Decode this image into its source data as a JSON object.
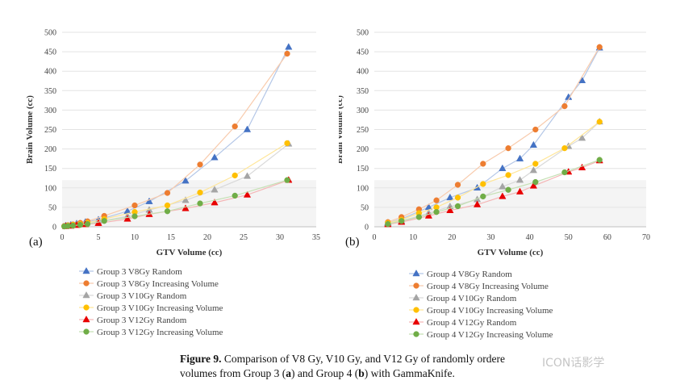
{
  "caption": {
    "figure_label": "Figure 9.",
    "text_part1": " Comparison of V8 Gy, V10 Gy, and V12 Gy of randomly ordere",
    "text_part2": "volumes from Group 3 (",
    "letter_a": "a",
    "text_part3": ") and Group 4 (",
    "letter_b": "b",
    "text_part4": ") with GammaKnife."
  },
  "watermark": "ICON话影学",
  "chart_data": [
    {
      "type": "line",
      "panel_label": "(a)",
      "xlabel": "GTV Volume (cc)",
      "ylabel": "Brain Volume (cc)",
      "xlim": [
        0,
        35
      ],
      "ylim": [
        0,
        500
      ],
      "xticks": [
        0,
        5,
        10,
        15,
        20,
        25,
        30,
        35
      ],
      "yticks": [
        0,
        50,
        100,
        150,
        200,
        250,
        300,
        350,
        400,
        450,
        500
      ],
      "series": [
        {
          "name": "Group 3 V8Gy Random",
          "color": "#4472c4",
          "line_color": "#b4c7e7",
          "marker": "triangle",
          "x": [
            0.5,
            1.2,
            2,
            3.2,
            5,
            9,
            12,
            17,
            21,
            25.5,
            31.2
          ],
          "y": [
            3,
            5,
            8,
            12,
            18,
            40,
            65,
            118,
            178,
            250,
            462
          ]
        },
        {
          "name": "Group 3 V8Gy Increasing Volume",
          "color": "#ed7d31",
          "line_color": "#f8cbad",
          "marker": "circle",
          "x": [
            0.3,
            0.8,
            1.5,
            2.5,
            3.5,
            5.8,
            10,
            14.5,
            19,
            23.8,
            31
          ],
          "y": [
            2,
            4,
            6,
            10,
            14,
            28,
            55,
            87,
            160,
            258,
            445
          ]
        },
        {
          "name": "Group 3 V10Gy Random",
          "color": "#a5a5a5",
          "line_color": "#d9d9d9",
          "marker": "triangle",
          "x": [
            0.5,
            1.2,
            2,
            3.2,
            5,
            9,
            12,
            17,
            21,
            25.5,
            31.2
          ],
          "y": [
            2,
            4,
            6,
            9,
            13,
            27,
            43,
            68,
            95,
            130,
            213
          ]
        },
        {
          "name": "Group 3 V10Gy Increasing Volume",
          "color": "#ffc000",
          "line_color": "#ffe699",
          "marker": "circle",
          "x": [
            0.3,
            0.8,
            1.5,
            2.5,
            3.5,
            5.8,
            10,
            14.5,
            19,
            23.8,
            31
          ],
          "y": [
            1,
            3,
            5,
            7,
            10,
            20,
            38,
            55,
            88,
            132,
            215
          ]
        },
        {
          "name": "Group 3 V12Gy Random",
          "color": "#e80000",
          "line_color": "#f4b6b6",
          "marker": "triangle",
          "x": [
            0.5,
            1.2,
            2,
            3.2,
            5,
            9,
            12,
            17,
            21,
            25.5,
            31.2
          ],
          "y": [
            1,
            2,
            4,
            6,
            9,
            20,
            32,
            47,
            62,
            82,
            120
          ]
        },
        {
          "name": "Group 3 V12Gy Increasing Volume",
          "color": "#70ad47",
          "line_color": "#c5e0b4",
          "marker": "circle",
          "x": [
            0.3,
            0.8,
            1.5,
            2.5,
            3.5,
            5.8,
            10,
            14.5,
            19,
            23.8,
            31
          ],
          "y": [
            1,
            2,
            3,
            5,
            7,
            15,
            27,
            40,
            60,
            80,
            120
          ]
        }
      ]
    },
    {
      "type": "line",
      "panel_label": "(b)",
      "xlabel": "GTV Volume (cc)",
      "ylabel": "Brain Volume (cc)",
      "xlim": [
        0,
        70
      ],
      "ylim": [
        0,
        500
      ],
      "xticks": [
        0,
        10,
        20,
        30,
        40,
        50,
        60,
        70
      ],
      "yticks": [
        0,
        50,
        100,
        150,
        200,
        250,
        300,
        350,
        400,
        450,
        500
      ],
      "series": [
        {
          "name": "Group 4 V8Gy Random",
          "color": "#4472c4",
          "line_color": "#b4c7e7",
          "marker": "triangle",
          "x": [
            3.5,
            7,
            14,
            19.5,
            26.5,
            33,
            37.5,
            41,
            50,
            53.5,
            58
          ],
          "y": [
            10,
            20,
            50,
            75,
            100,
            150,
            175,
            210,
            333,
            376,
            460
          ]
        },
        {
          "name": "Group 4 V8Gy Increasing Volume",
          "color": "#ed7d31",
          "line_color": "#f8cbad",
          "marker": "circle",
          "x": [
            3.5,
            7,
            11.5,
            16,
            21.5,
            28,
            34.5,
            41.5,
            49,
            58
          ],
          "y": [
            12,
            25,
            45,
            68,
            108,
            162,
            202,
            250,
            310,
            462
          ]
        },
        {
          "name": "Group 4 V10Gy Random",
          "color": "#a5a5a5",
          "line_color": "#d9d9d9",
          "marker": "triangle",
          "x": [
            3.5,
            7,
            14,
            19.5,
            26.5,
            33,
            37.5,
            41,
            50,
            53.5,
            58
          ],
          "y": [
            8,
            15,
            35,
            52,
            70,
            103,
            120,
            145,
            207,
            228,
            270
          ]
        },
        {
          "name": "Group 4 V10Gy Increasing Volume",
          "color": "#ffc000",
          "line_color": "#ffe699",
          "marker": "circle",
          "x": [
            3.5,
            7,
            11.5,
            16,
            21.5,
            28,
            34.5,
            41.5,
            49,
            58
          ],
          "y": [
            10,
            18,
            35,
            50,
            75,
            110,
            133,
            162,
            202,
            270
          ]
        },
        {
          "name": "Group 4 V12Gy Random",
          "color": "#e80000",
          "line_color": "#f4b6b6",
          "marker": "triangle",
          "x": [
            3.5,
            7,
            14,
            19.5,
            26.5,
            33,
            37.5,
            41,
            50,
            53.5,
            58
          ],
          "y": [
            6,
            12,
            28,
            42,
            57,
            78,
            90,
            105,
            141,
            152,
            170
          ]
        },
        {
          "name": "Group 4 V12Gy Increasing Volume",
          "color": "#70ad47",
          "line_color": "#c5e0b4",
          "marker": "circle",
          "x": [
            3.5,
            7,
            11.5,
            16,
            21.5,
            28,
            34.5,
            41.5,
            49,
            58
          ],
          "y": [
            7,
            15,
            25,
            38,
            53,
            78,
            95,
            115,
            140,
            172
          ]
        }
      ]
    }
  ]
}
